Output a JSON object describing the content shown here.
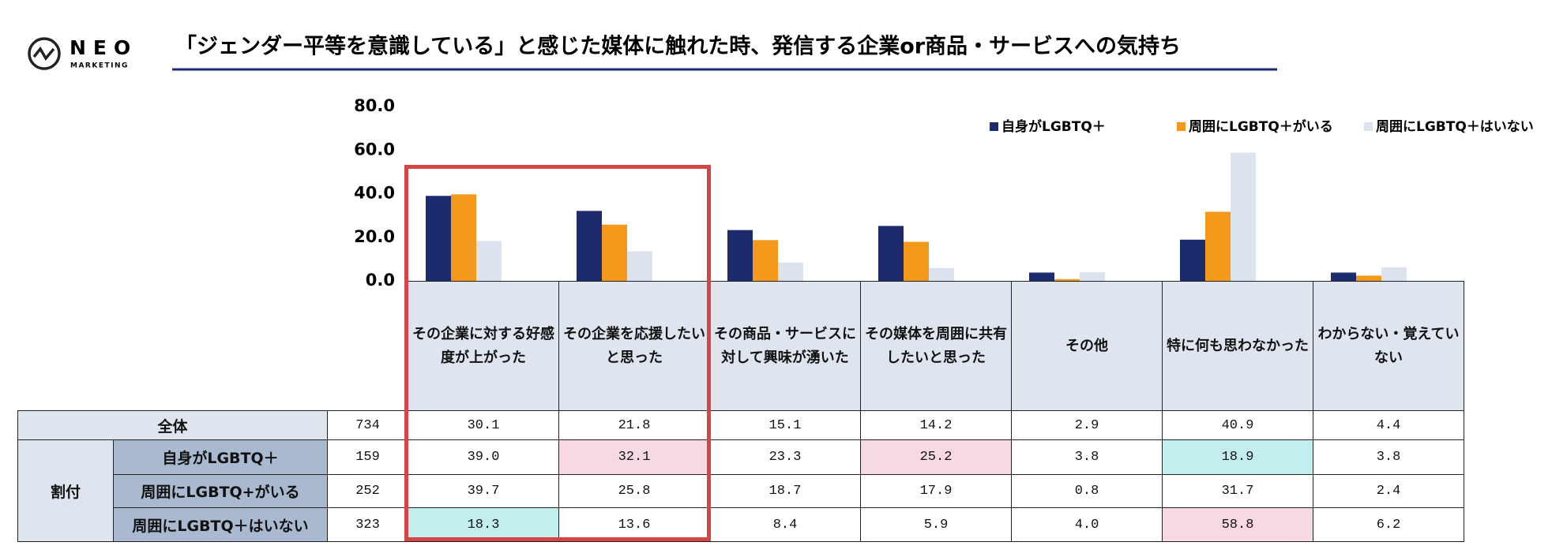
{
  "header": {
    "logo": "NEO",
    "logo_sub": "MARKETING",
    "title": "「ジェンダー平等を意識している」と感じた媒体に触れた時、発信する企業or商品・サービスへの気持ち"
  },
  "chart_data": {
    "type": "bar",
    "categories": [
      "その企業に対する好感度が上がった",
      "その企業を応援したいと思った",
      "その商品・サービスに対して興味が湧いた",
      "その媒体を周囲に共有したいと思った",
      "その他",
      "特に何も思わなかった",
      "わからない・覚えていない"
    ],
    "series": [
      {
        "name": "自身がLGBTQ＋",
        "color": "#1c2a6e",
        "values": [
          39.0,
          32.1,
          23.3,
          25.2,
          3.8,
          18.9,
          3.8
        ]
      },
      {
        "name": "周囲にLGBTQ＋がいる",
        "color": "#f5991c",
        "values": [
          39.7,
          25.8,
          18.7,
          17.9,
          0.8,
          31.7,
          2.4
        ]
      },
      {
        "name": "周囲にLGBTQ＋はいない",
        "color": "#dce3ee",
        "values": [
          18.3,
          13.6,
          8.4,
          5.9,
          4.0,
          58.8,
          6.2
        ]
      }
    ],
    "ylim": [
      0,
      80
    ],
    "yticks": [
      {
        "value": 0,
        "label": "0.0"
      },
      {
        "value": 20,
        "label": "20.0"
      },
      {
        "value": 40,
        "label": "40.0"
      },
      {
        "value": 60,
        "label": "60.0"
      },
      {
        "value": 80,
        "label": "80.0"
      }
    ],
    "legend": "top-right"
  },
  "table": {
    "group_label": "割付",
    "rows": [
      {
        "label": "全体",
        "n": "734",
        "values": [
          "30.1",
          "21.8",
          "15.1",
          "14.2",
          "2.9",
          "40.9",
          "4.4"
        ]
      },
      {
        "label": "自身がLGBTQ＋",
        "n": "159",
        "values": [
          "39.0",
          "32.1",
          "23.3",
          "25.2",
          "3.8",
          "18.9",
          "3.8"
        ]
      },
      {
        "label": "周囲にLGBTQ+がいる",
        "n": "252",
        "values": [
          "39.7",
          "25.8",
          "18.7",
          "17.9",
          "0.8",
          "31.7",
          "2.4"
        ]
      },
      {
        "label": "周囲にLGBTQ＋はいない",
        "n": "323",
        "values": [
          "18.3",
          "13.6",
          "8.4",
          "5.9",
          "4.0",
          "58.8",
          "6.2"
        ]
      }
    ]
  }
}
